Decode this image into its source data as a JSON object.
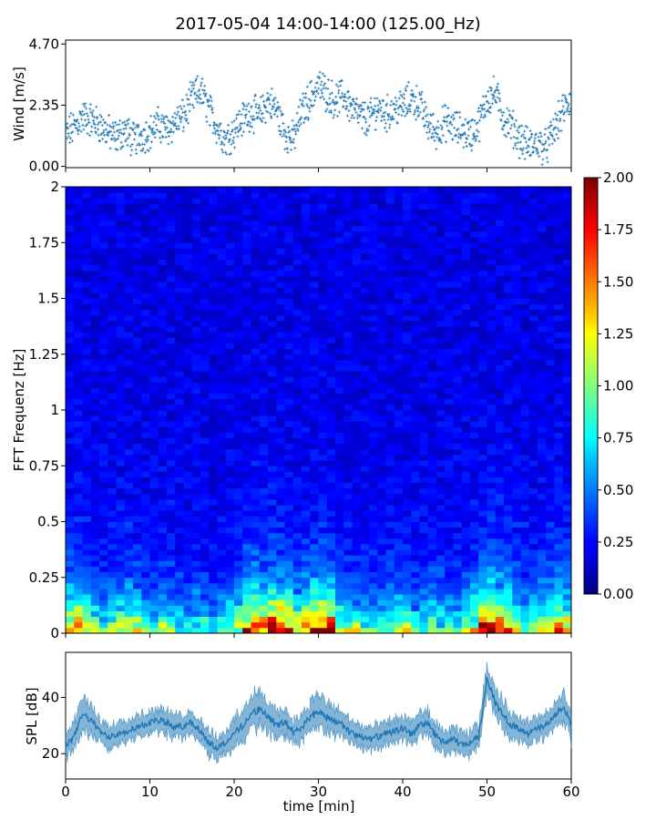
{
  "title": "2017-05-04 14:00-14:00 (125.00_Hz)",
  "chart_data": [
    {
      "type": "scatter",
      "panel": "wind",
      "ylabel": "Wind [m/s]",
      "xlim": [
        0,
        60
      ],
      "ylim": [
        -0.05,
        4.85
      ],
      "yticks": [
        0.0,
        2.35,
        4.7
      ],
      "ytick_labels": [
        "0.00",
        "2.35",
        "4.70"
      ],
      "marker_color": "#1f77b4",
      "marker": "+",
      "x": [
        0,
        1,
        2,
        3,
        4,
        5,
        6,
        7,
        8,
        9,
        10,
        11,
        12,
        13,
        14,
        15,
        16,
        17,
        18,
        19,
        20,
        21,
        22,
        23,
        24,
        25,
        26,
        27,
        28,
        29,
        30,
        31,
        32,
        33,
        34,
        35,
        36,
        37,
        38,
        39,
        40,
        41,
        42,
        43,
        44,
        45,
        46,
        47,
        48,
        49,
        50,
        51,
        52,
        53,
        54,
        55,
        56,
        57,
        58,
        59,
        60
      ],
      "y": [
        1.2,
        1.5,
        1.9,
        1.8,
        1.6,
        1.3,
        1.1,
        1.4,
        1.0,
        1.2,
        1.3,
        1.6,
        1.4,
        1.7,
        1.9,
        2.6,
        2.9,
        2.2,
        1.5,
        1.0,
        1.4,
        1.8,
        2.1,
        1.9,
        2.5,
        2.2,
        1.3,
        1.0,
        2.1,
        2.6,
        3.1,
        2.8,
        2.5,
        2.7,
        2.2,
        1.9,
        1.8,
        2.3,
        2.0,
        2.2,
        2.3,
        2.6,
        2.4,
        1.6,
        1.3,
        1.7,
        1.5,
        1.4,
        1.2,
        1.6,
        2.6,
        2.8,
        1.8,
        1.5,
        1.0,
        0.8,
        0.9,
        0.7,
        1.4,
        2.1,
        2.6
      ]
    },
    {
      "type": "heatmap",
      "panel": "spectrogram",
      "ylabel": "FFT Frequenz [Hz]",
      "xlim": [
        0,
        60
      ],
      "ylim": [
        0,
        2
      ],
      "yticks": [
        0,
        0.25,
        0.5,
        0.75,
        1,
        1.25,
        1.5,
        1.75,
        2
      ],
      "ytick_labels": [
        "0",
        "0.25",
        "0.5",
        "0.75",
        "1",
        "1.25",
        "1.5",
        "1.75",
        "2"
      ],
      "colormap": "jet",
      "colorbar": {
        "vmin": 0.0,
        "vmax": 2.0,
        "ticks": [
          0.0,
          0.25,
          0.5,
          0.75,
          1.0,
          1.25,
          1.5,
          1.75,
          2.0
        ],
        "tick_labels": [
          "0.00",
          "0.25",
          "0.50",
          "0.75",
          "1.00",
          "1.25",
          "1.50",
          "1.75",
          "2.00"
        ]
      },
      "time_bins": 60,
      "frequency_bins": 80,
      "base_level": 0.2,
      "low_frequency_peak": 1.6,
      "activity_by_minute": [
        0.7,
        0.8,
        0.6,
        0.5,
        0.4,
        0.5,
        0.6,
        0.7,
        0.6,
        0.4,
        0.4,
        0.5,
        0.5,
        0.4,
        0.3,
        0.4,
        0.4,
        0.3,
        0.4,
        0.5,
        0.6,
        0.8,
        0.9,
        0.8,
        1.0,
        1.0,
        0.9,
        0.6,
        0.8,
        1.0,
        1.0,
        0.9,
        0.6,
        0.5,
        0.5,
        0.4,
        0.4,
        0.4,
        0.5,
        0.5,
        0.5,
        0.4,
        0.4,
        0.5,
        0.4,
        0.4,
        0.4,
        0.5,
        0.6,
        1.0,
        1.1,
        1.0,
        0.8,
        0.6,
        0.5,
        0.5,
        0.6,
        0.7,
        0.8,
        0.7
      ]
    },
    {
      "type": "area",
      "panel": "spl",
      "xlabel": "time [min]",
      "ylabel": "SPL [dB]",
      "xlim": [
        0,
        60
      ],
      "ylim": [
        11,
        56
      ],
      "xticks": [
        0,
        10,
        20,
        30,
        40,
        50,
        60
      ],
      "xtick_labels": [
        "0",
        "10",
        "20",
        "30",
        "40",
        "50",
        "60"
      ],
      "yticks": [
        20,
        40
      ],
      "ytick_labels": [
        "20",
        "40"
      ],
      "color": "#1f77b4",
      "x": [
        0,
        1,
        2,
        3,
        4,
        5,
        6,
        7,
        8,
        9,
        10,
        11,
        12,
        13,
        14,
        15,
        16,
        17,
        18,
        19,
        20,
        21,
        22,
        23,
        24,
        25,
        26,
        27,
        28,
        29,
        30,
        31,
        32,
        33,
        34,
        35,
        36,
        37,
        38,
        39,
        40,
        41,
        42,
        43,
        44,
        45,
        46,
        47,
        48,
        49,
        50,
        51,
        52,
        53,
        54,
        55,
        56,
        57,
        58,
        59,
        60
      ],
      "center": [
        22,
        26,
        34,
        32,
        28,
        26,
        27,
        28,
        29,
        30,
        31,
        32,
        31,
        29,
        30,
        31,
        28,
        24,
        22,
        24,
        27,
        30,
        34,
        36,
        33,
        30,
        31,
        28,
        29,
        33,
        35,
        33,
        31,
        30,
        27,
        26,
        25,
        26,
        27,
        28,
        29,
        27,
        30,
        31,
        26,
        24,
        25,
        23,
        24,
        26,
        47,
        38,
        33,
        30,
        29,
        27,
        29,
        30,
        33,
        37,
        30
      ],
      "spread": [
        4,
        5,
        6,
        5,
        4,
        4,
        4,
        4,
        4,
        4,
        4,
        4,
        4,
        4,
        4,
        4,
        4,
        4,
        4,
        4,
        5,
        5,
        6,
        6,
        5,
        5,
        5,
        4,
        5,
        5,
        6,
        5,
        5,
        4,
        4,
        4,
        4,
        4,
        4,
        4,
        4,
        4,
        4,
        4,
        4,
        4,
        4,
        4,
        4,
        4,
        5,
        5,
        5,
        4,
        4,
        4,
        4,
        4,
        4,
        5,
        5
      ]
    }
  ]
}
